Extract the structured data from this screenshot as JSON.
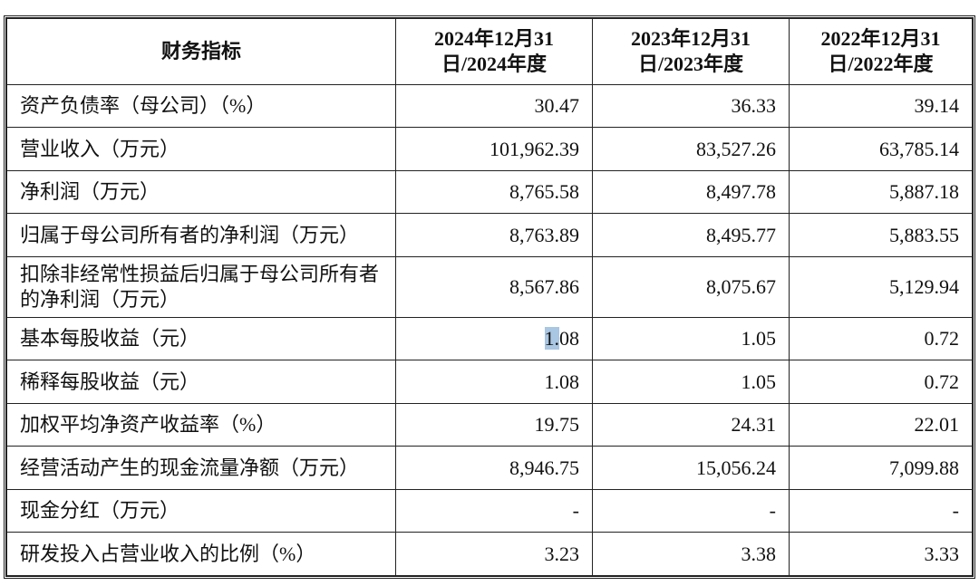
{
  "headers": [
    "财务指标",
    "2024年12月31日/2024年度",
    "2023年12月31日/2023年度",
    "2022年12月31日/2022年度"
  ],
  "rows": [
    {
      "label": "资产负债率（母公司）（%）",
      "values": [
        "30.47",
        "36.33",
        "39.14"
      ]
    },
    {
      "label": "营业收入（万元）",
      "values": [
        "101,962.39",
        "83,527.26",
        "63,785.14"
      ]
    },
    {
      "label": "净利润（万元）",
      "values": [
        "8,765.58",
        "8,497.78",
        "5,887.18"
      ]
    },
    {
      "label": "归属于母公司所有者的净利润（万元）",
      "values": [
        "8,763.89",
        "8,495.77",
        "5,883.55"
      ]
    },
    {
      "label": "扣除非经常性损益后归属于母公司所有者的净利润（万元）",
      "values": [
        "8,567.86",
        "8,075.67",
        "5,129.94"
      ]
    },
    {
      "label": "基本每股收益（元）",
      "values": [
        "1.08",
        "1.05",
        "0.72"
      ]
    },
    {
      "label": "稀释每股收益（元）",
      "values": [
        "1.08",
        "1.05",
        "0.72"
      ]
    },
    {
      "label": "加权平均净资产收益率（%）",
      "values": [
        "19.75",
        "24.31",
        "22.01"
      ]
    },
    {
      "label": "经营活动产生的现金流量净额（万元）",
      "values": [
        "8,946.75",
        "15,056.24",
        "7,099.88"
      ]
    },
    {
      "label": "现金分红（万元）",
      "values": [
        "-",
        "-",
        "-"
      ]
    },
    {
      "label": "研发投入占营业收入的比例（%）",
      "values": [
        "3.23",
        "3.38",
        "3.33"
      ]
    }
  ],
  "selection_color": "#a9c6e2"
}
